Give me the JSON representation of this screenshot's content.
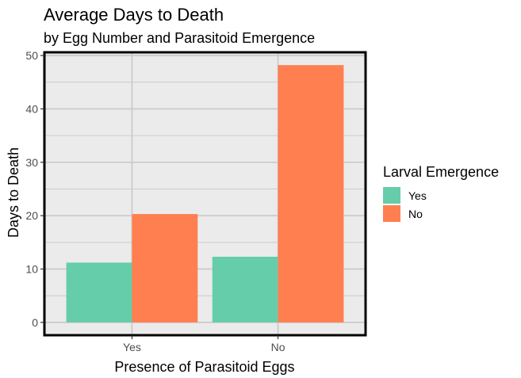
{
  "chart_data": {
    "type": "bar",
    "title": "Average Days to Death",
    "subtitle": "by Egg Number and Parasitoid Emergence",
    "xlabel": "Presence of Parasitoid Eggs",
    "ylabel": "Days to Death",
    "categories": [
      "Yes",
      "No"
    ],
    "series": [
      {
        "name": "Yes",
        "color": "#66CDAA",
        "values": [
          11.2,
          12.3
        ]
      },
      {
        "name": "No",
        "color": "#FF7F50",
        "values": [
          20.3,
          48.2
        ]
      }
    ],
    "ylim": [
      -2.4,
      50.6
    ],
    "yticks": [
      0,
      10,
      20,
      30,
      40,
      50
    ],
    "yticks_minor": [
      5,
      15,
      25,
      35,
      45
    ],
    "grid": true,
    "legend": {
      "title": "Larval Emergence",
      "placement": "right",
      "entries": [
        "Yes",
        "No"
      ]
    },
    "panel_background": "#EBEBEB",
    "grid_color": "#C8C8C8"
  }
}
